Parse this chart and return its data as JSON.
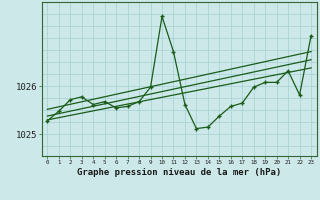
{
  "xlabel": "Graphe pression niveau de la mer (hPa)",
  "background_color": "#cce8e8",
  "grid_color": "#aad4d4",
  "line_color": "#1a5c1a",
  "x_ticks": [
    0,
    1,
    2,
    3,
    4,
    5,
    6,
    7,
    8,
    9,
    10,
    11,
    12,
    13,
    14,
    15,
    16,
    17,
    18,
    19,
    20,
    21,
    22,
    23
  ],
  "y_ticks": [
    1025,
    1026
  ],
  "ylim": [
    1024.55,
    1027.75
  ],
  "xlim": [
    -0.5,
    23.5
  ],
  "main_x": [
    0,
    1,
    2,
    3,
    4,
    5,
    6,
    7,
    8,
    9,
    10,
    11,
    12,
    13,
    14,
    15,
    16,
    17,
    18,
    19,
    20,
    21,
    22,
    23
  ],
  "main_y": [
    1025.28,
    1025.48,
    1025.72,
    1025.78,
    1025.62,
    1025.68,
    1025.55,
    1025.58,
    1025.68,
    1025.98,
    1027.45,
    1026.72,
    1025.62,
    1025.12,
    1025.15,
    1025.38,
    1025.58,
    1025.65,
    1025.98,
    1026.08,
    1026.08,
    1026.32,
    1025.82,
    1027.05
  ],
  "trend1_x": [
    0,
    23
  ],
  "trend1_y": [
    1025.38,
    1026.55
  ],
  "trend2_x": [
    0,
    23
  ],
  "trend2_y": [
    1025.52,
    1026.72
  ],
  "trend3_x": [
    0,
    23
  ],
  "trend3_y": [
    1025.3,
    1026.38
  ]
}
